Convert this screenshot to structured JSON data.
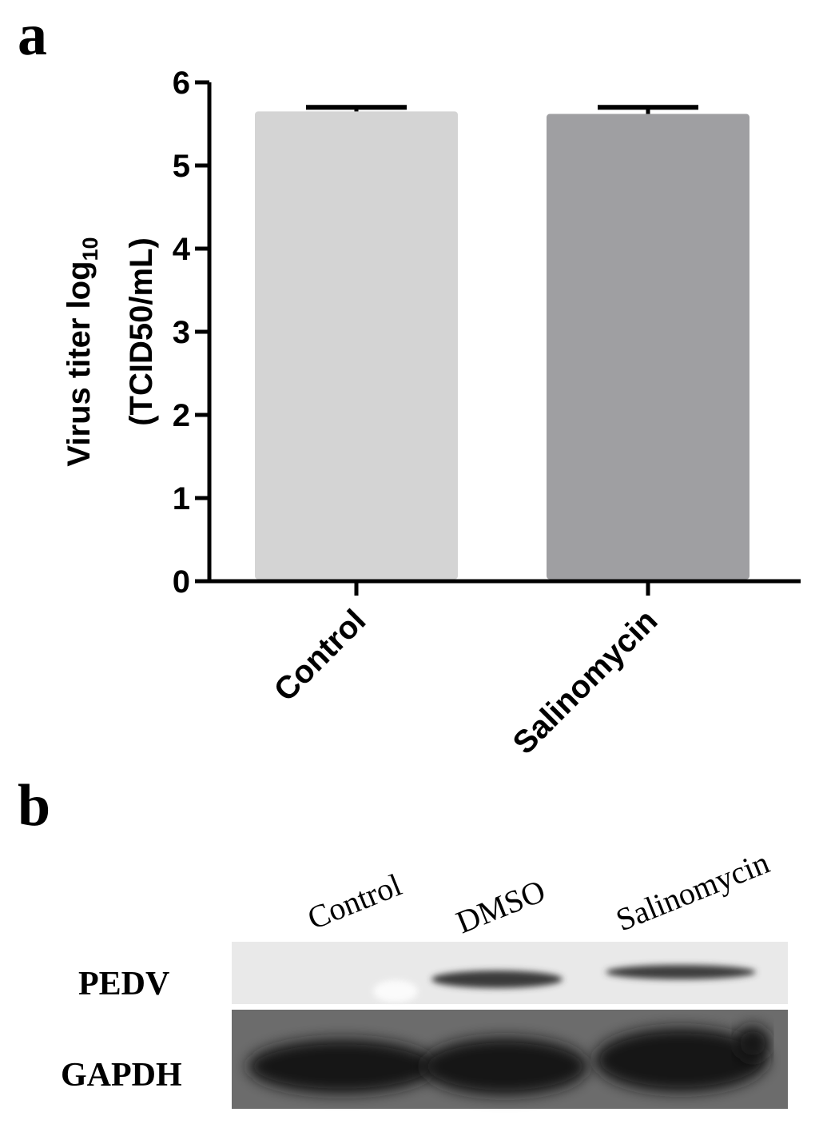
{
  "panel_a": {
    "label": "a"
  },
  "panel_b": {
    "label": "b",
    "lanes": [
      "Control",
      "DMSO",
      "Salinomycin"
    ],
    "rows": [
      "PEDV",
      "GAPDH"
    ]
  },
  "chart_data": {
    "type": "bar",
    "categories": [
      "Control",
      "Salinomycin"
    ],
    "values": [
      5.65,
      5.62
    ],
    "errors": [
      0.05,
      0.08
    ],
    "colors": [
      "#d4d4d4",
      "#9f9fa2"
    ],
    "title": "",
    "ylabel_line1": "Virus titer log",
    "ylabel_subscript": "10",
    "ylabel_line2": "(TCID50/mL)",
    "ylim": [
      0,
      6
    ],
    "yticks": [
      "0",
      "1",
      "2",
      "3",
      "4",
      "5",
      "6"
    ],
    "grid": false,
    "legend": "none"
  }
}
